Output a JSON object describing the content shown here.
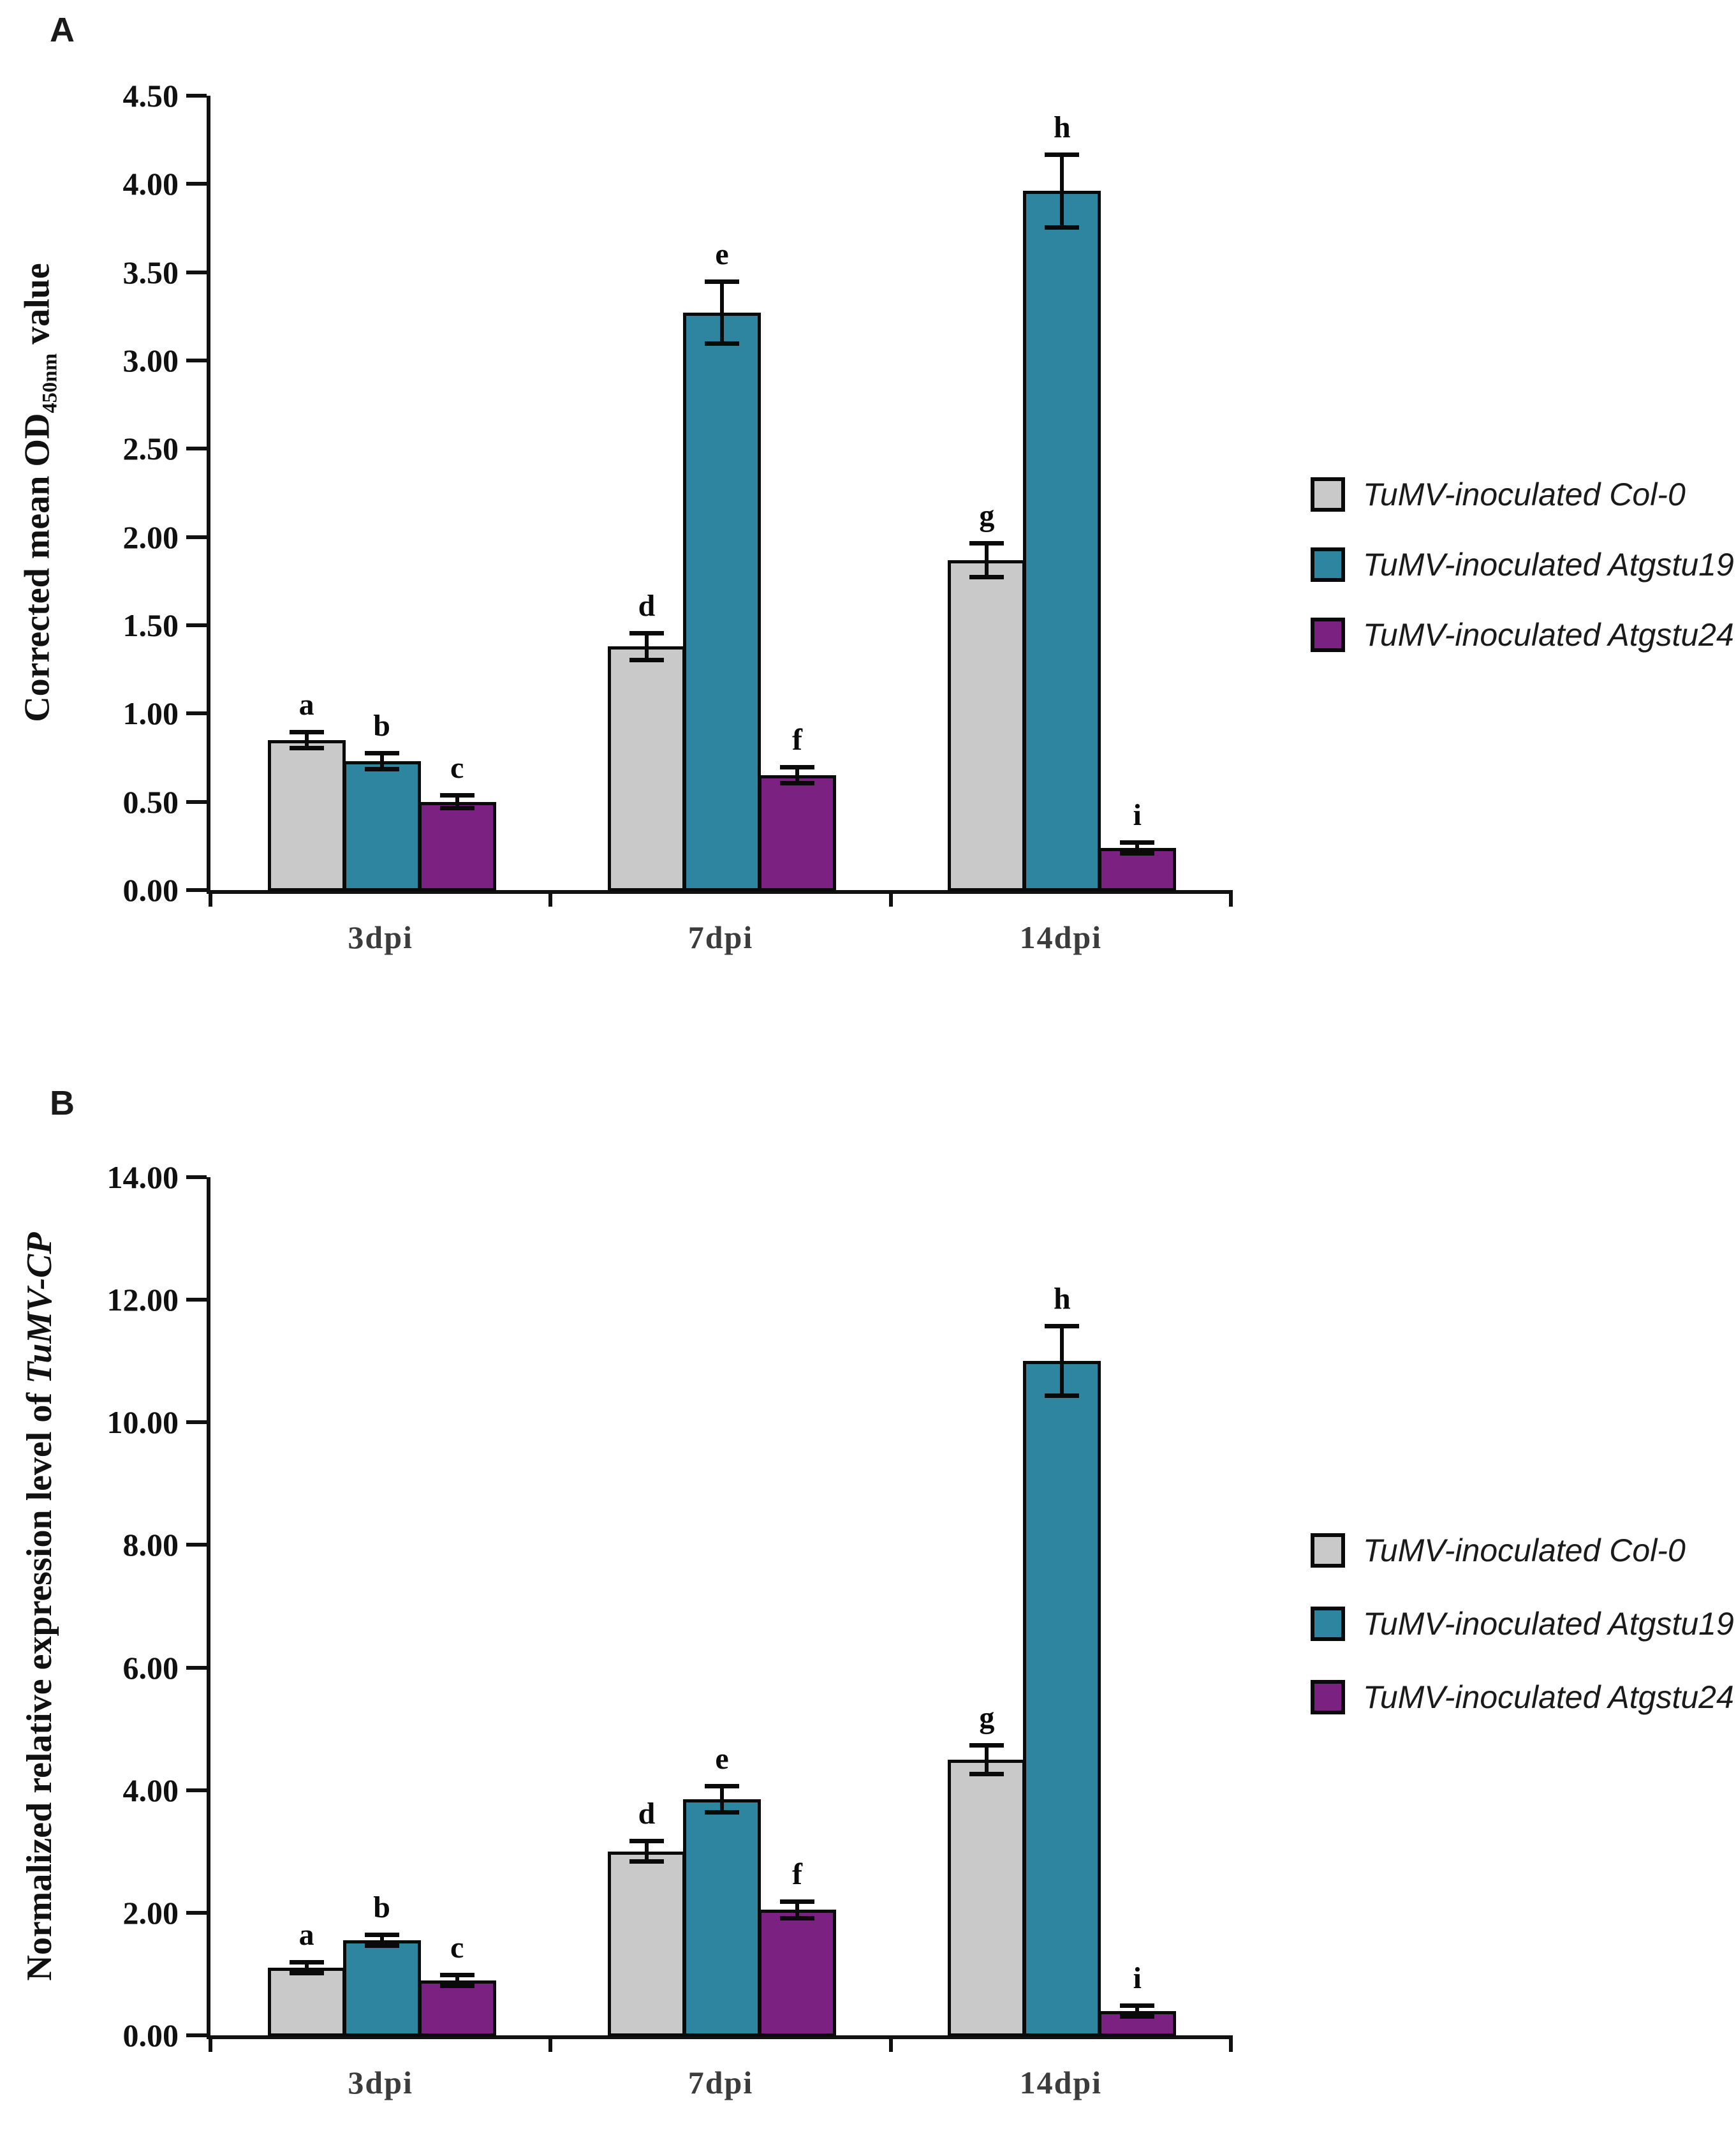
{
  "chart_data": [
    {
      "panel_label": "A",
      "type": "bar",
      "ylabel_parts": [
        {
          "text": "Corrected mean OD",
          "style": "normal"
        },
        {
          "text": "450nm",
          "style": "sub"
        },
        {
          "text": " value",
          "style": "normal"
        }
      ],
      "ylim": [
        0,
        4.5
      ],
      "yticks": [
        "0.00",
        "0.50",
        "1.00",
        "1.50",
        "2.00",
        "2.50",
        "3.00",
        "3.50",
        "4.00",
        "4.50"
      ],
      "categories": [
        "3dpi",
        "7dpi",
        "14dpi"
      ],
      "grid": "off",
      "legend_position": "right",
      "series": [
        {
          "name": "TuMV-inoculated Col-0",
          "color": "#C9C9C9",
          "values": [
            0.85,
            1.38,
            1.87
          ],
          "errors": [
            0.04,
            0.07,
            0.09
          ]
        },
        {
          "name": "TuMV-inoculated Atgstu19",
          "color": "#2E85A0",
          "values": [
            0.73,
            3.27,
            3.96
          ],
          "errors": [
            0.04,
            0.17,
            0.2
          ]
        },
        {
          "name": "TuMV-inoculated Atgstu24",
          "color": "#7A2182",
          "values": [
            0.5,
            0.65,
            0.24
          ],
          "errors": [
            0.03,
            0.04,
            0.02
          ]
        }
      ],
      "sig_letters": [
        [
          "a",
          "b",
          "c"
        ],
        [
          "d",
          "e",
          "f"
        ],
        [
          "g",
          "h",
          "i"
        ]
      ],
      "legend_labels": [
        "TuMV-inoculated Col-0",
        "TuMV-inoculated Atgstu19",
        "TuMV-inoculated Atgstu24"
      ]
    },
    {
      "panel_label": "B",
      "type": "bar",
      "ylabel_parts": [
        {
          "text": "Normalized relative expression level of ",
          "style": "normal"
        },
        {
          "text": "TuMV-CP",
          "style": "italic"
        }
      ],
      "ylim": [
        0,
        14
      ],
      "yticks": [
        "0.00",
        "2.00",
        "4.00",
        "6.00",
        "8.00",
        "10.00",
        "12.00",
        "14.00"
      ],
      "categories": [
        "3dpi",
        "7dpi",
        "14dpi"
      ],
      "grid": "off",
      "legend_position": "right",
      "series": [
        {
          "name": "TuMV-inoculated Col-0",
          "color": "#C9C9C9",
          "values": [
            1.1,
            3.0,
            4.5
          ],
          "errors": [
            0.05,
            0.15,
            0.22
          ]
        },
        {
          "name": "TuMV-inoculated Atgstu19",
          "color": "#2E85A0",
          "values": [
            1.55,
            3.85,
            11.0
          ],
          "errors": [
            0.07,
            0.2,
            0.55
          ]
        },
        {
          "name": "TuMV-inoculated Atgstu24",
          "color": "#7A2182",
          "values": [
            0.9,
            2.05,
            0.4
          ],
          "errors": [
            0.04,
            0.12,
            0.05
          ]
        }
      ],
      "sig_letters": [
        [
          "a",
          "b",
          "c"
        ],
        [
          "d",
          "e",
          "f"
        ],
        [
          "g",
          "h",
          "i"
        ]
      ],
      "legend_labels": [
        "TuMV-inoculated Col-0",
        "TuMV-inoculated Atgstu19",
        "TuMV-inoculated Atgstu24"
      ]
    }
  ],
  "colors": {
    "bar_outline": "#0A0A0A",
    "axis": "#111111",
    "gray_series": "#C9C9C9",
    "teal_series": "#2E85A0",
    "purple_series": "#7A2182",
    "category_label": "#3C3C3C",
    "legend_text": "#1A1A1A"
  }
}
